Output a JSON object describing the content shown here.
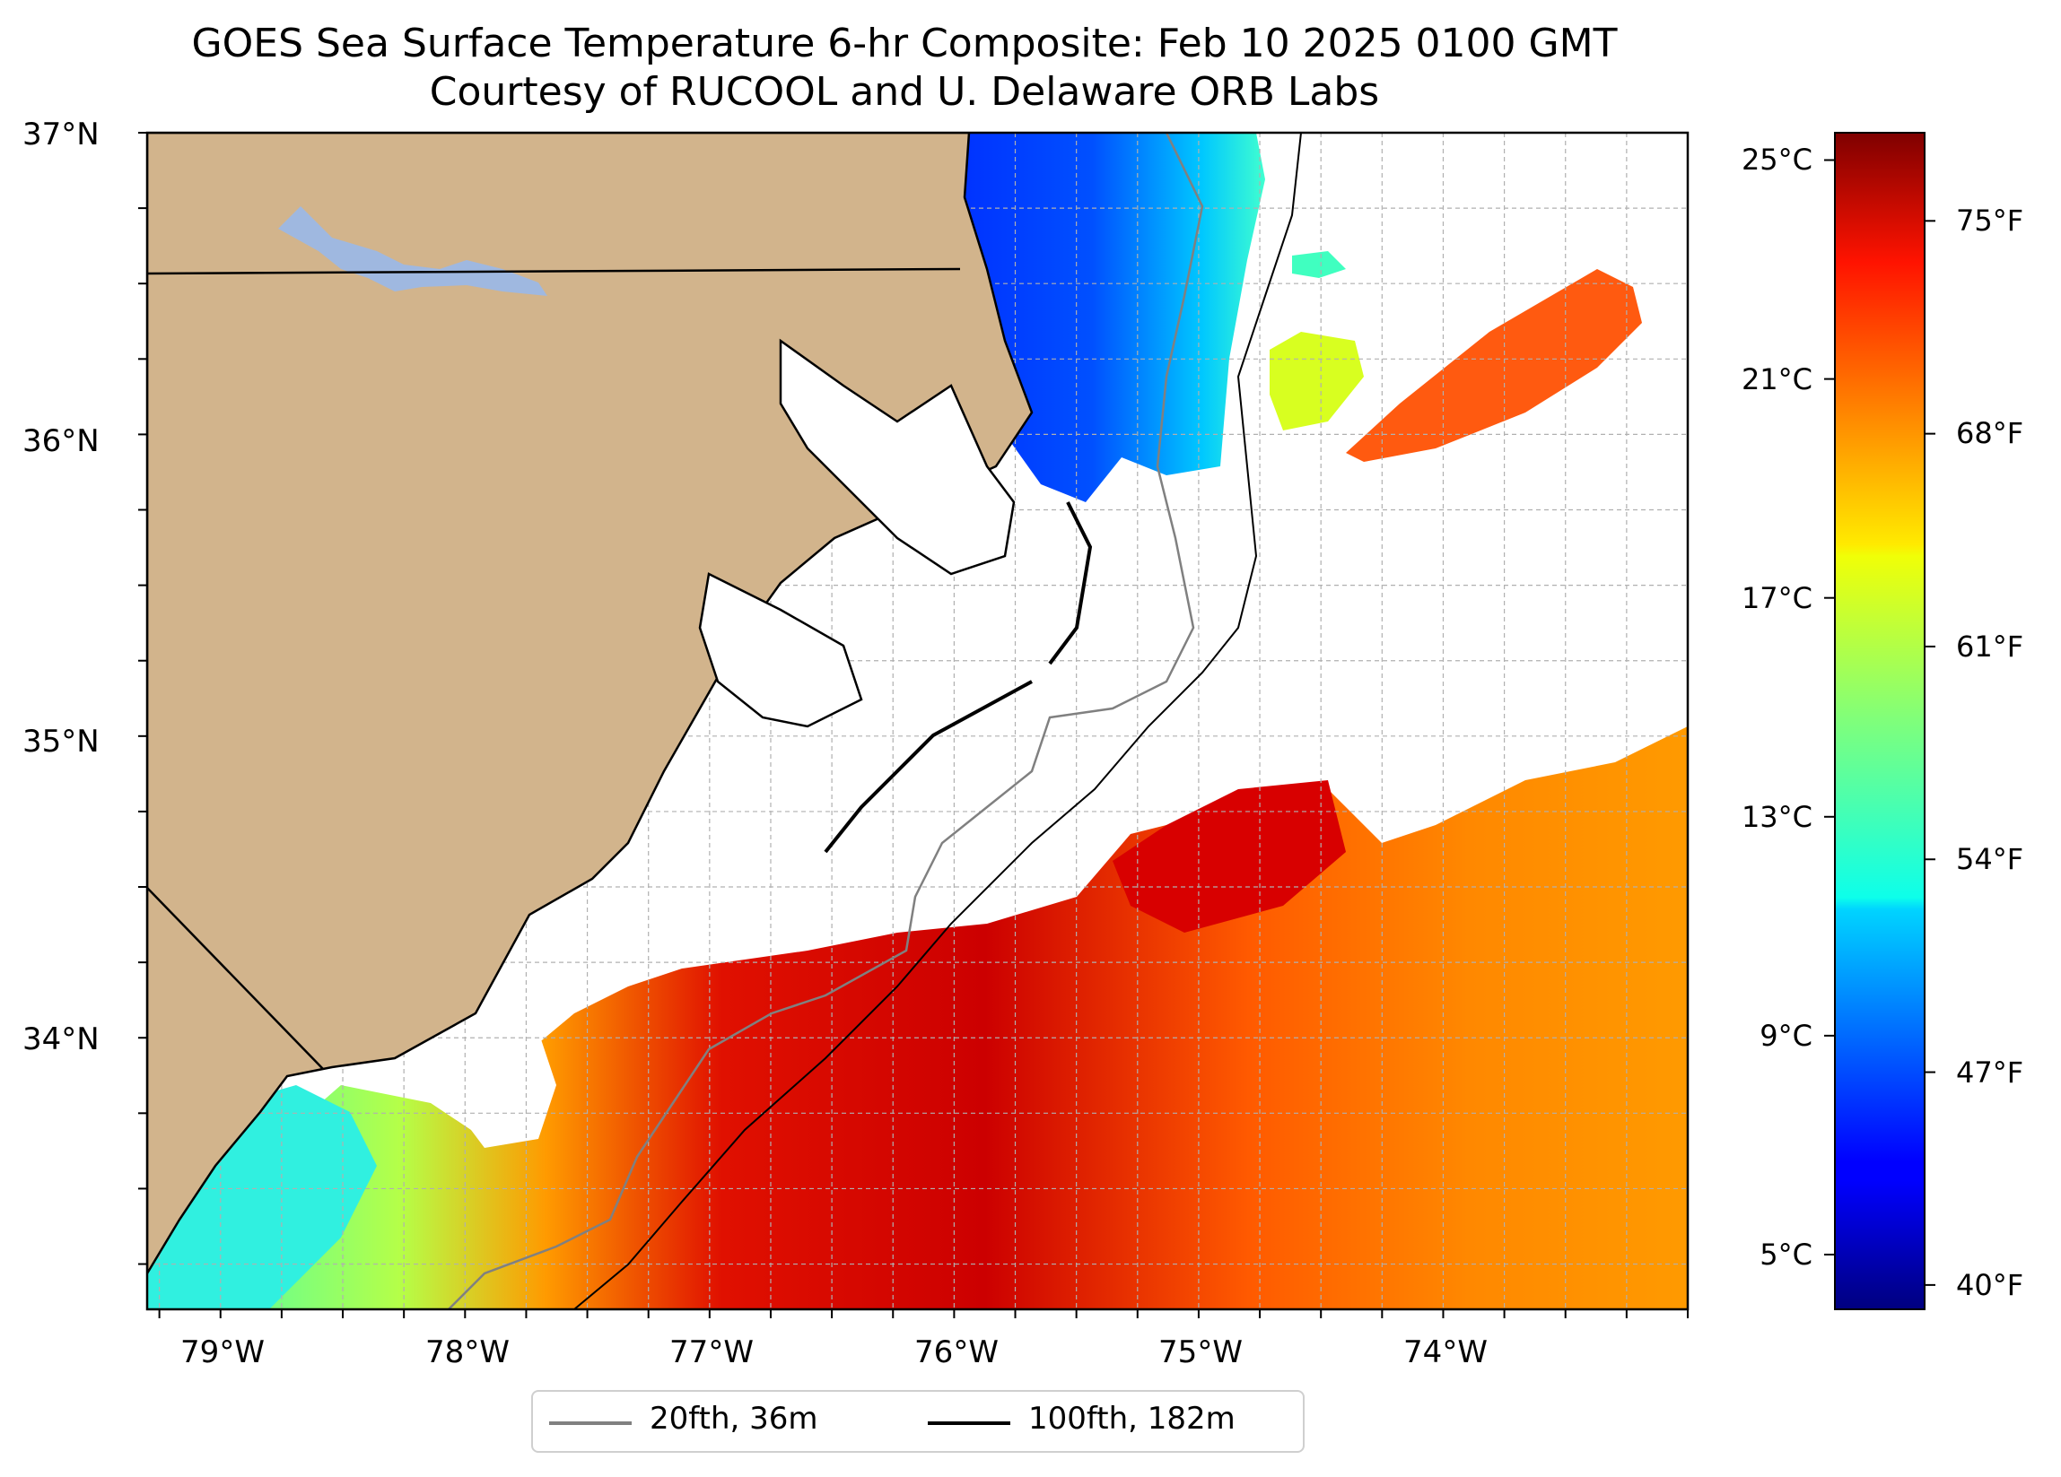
{
  "title": {
    "line1": "GOES Sea Surface Temperature 6-hr Composite: Feb 10 2025 0100 GMT",
    "line2": "Courtesy of RUCOOL and U. Delaware ORB Labs"
  },
  "map": {
    "extent": {
      "lon_min": -79.3,
      "lon_max": -73.0,
      "lat_min": 33.1,
      "lat_max": 37.0
    },
    "colors": {
      "land": "#d2b48c",
      "lake": "#9fb8e0",
      "coast": "#000000",
      "isobath_20": "#808080",
      "isobath_100": "#000000",
      "gridline": "#b0b0b0"
    },
    "lat_ticks": [
      {
        "value": 37,
        "label": "37°N"
      },
      {
        "value": 36,
        "label": "36°N"
      },
      {
        "value": 35,
        "label": "35°N"
      },
      {
        "value": 34,
        "label": "34°N"
      }
    ],
    "lon_ticks": [
      {
        "value": -79,
        "label": "79°W"
      },
      {
        "value": -78,
        "label": "78°W"
      },
      {
        "value": -77,
        "label": "77°W"
      },
      {
        "value": -76,
        "label": "76°W"
      },
      {
        "value": -75,
        "label": "75°W"
      },
      {
        "value": -74,
        "label": "74°W"
      }
    ]
  },
  "colorbar": {
    "colormap": "jet",
    "celsius_min": 4.0,
    "celsius_max": 25.5,
    "celsius_ticks": [
      {
        "value": 25,
        "label": "25°C"
      },
      {
        "value": 21,
        "label": "21°C"
      },
      {
        "value": 17,
        "label": "17°C"
      },
      {
        "value": 13,
        "label": "13°C"
      },
      {
        "value": 9,
        "label": "9°C"
      },
      {
        "value": 5,
        "label": "5°C"
      }
    ],
    "fahrenheit_ticks": [
      {
        "value": 75,
        "label": "75°F"
      },
      {
        "value": 68,
        "label": "68°F"
      },
      {
        "value": 61,
        "label": "61°F"
      },
      {
        "value": 54,
        "label": "54°F"
      },
      {
        "value": 47,
        "label": "47°F"
      },
      {
        "value": 40,
        "label": "40°F"
      }
    ]
  },
  "legend": [
    {
      "label": "20fth, 36m",
      "color": "#808080"
    },
    {
      "label": "100fth, 182m",
      "color": "#000000"
    }
  ]
}
